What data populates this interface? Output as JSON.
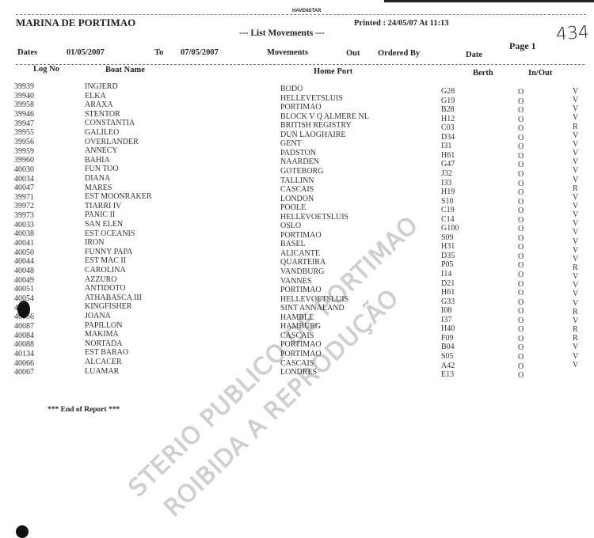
{
  "header": {
    "system": "HAVENSTAR",
    "marina": "MARINA DE PORTIMAO",
    "printed": "Printed : 24/05/07 At 11:13",
    "title": "--- List Movements ---",
    "page": "Page 1",
    "handwritten_number": "434"
  },
  "filters": {
    "dates_label": "Dates",
    "date_from": "01/05/2007",
    "to_label": "To",
    "date_to": "07/05/2007",
    "movements_label": "Movements",
    "movements_value": "Out",
    "ordered_by_label": "Ordered By",
    "ordered_by_value": "Date"
  },
  "columns": [
    "Log No",
    "Boat Name",
    "Home Port",
    "Berth",
    "In/Out"
  ],
  "rows": [
    [
      "39939",
      "INGJERD",
      "BODO",
      "G28",
      "O",
      "V"
    ],
    [
      "39940",
      "ELKA",
      "HELLEVETSLUIS",
      "G19",
      "O",
      "V"
    ],
    [
      "39958",
      "ARAXA",
      "PORTIMAO",
      "B28",
      "O",
      "V"
    ],
    [
      "39946",
      "STENTOR",
      "BLOCK V Q ALMERE NL",
      "H12",
      "O",
      "V"
    ],
    [
      "39947",
      "CONSTANTIA",
      "BRITISH REGISTRY",
      "C03",
      "O",
      "R"
    ],
    [
      "39955",
      "GALILEO",
      "DUN LAOGHAIRE",
      "D34",
      "O",
      "V"
    ],
    [
      "39956",
      "OVERLANDER",
      "GENT",
      "I31",
      "O",
      "V"
    ],
    [
      "39959",
      "ANNECY",
      "PADSTON",
      "H61",
      "O",
      "V"
    ],
    [
      "39960",
      "BAHIA",
      "NAARDEN",
      "G47",
      "O",
      "V"
    ],
    [
      "40030",
      "FUN TOO",
      "GOTEBORG",
      "J32",
      "O",
      "V"
    ],
    [
      "40034",
      "DIANA",
      "TALLINN",
      "I33",
      "O",
      "V"
    ],
    [
      "40047",
      "MARES",
      "CASCAIS",
      "H19",
      "O",
      "R"
    ],
    [
      "39971",
      "EST MOONRAKER",
      "LONDON",
      "S10",
      "O",
      "V"
    ],
    [
      "39972",
      "TIARRI IV",
      "POOLE",
      "C19",
      "O",
      "V"
    ],
    [
      "39973",
      "PANIC II",
      "HELLEVOETSLUIS",
      "C14",
      "O",
      "V"
    ],
    [
      "40033",
      "SAN ELEN",
      "OSLO",
      "G100",
      "O",
      "V"
    ],
    [
      "40038",
      "EST OCEANIS",
      "PORTIMAO",
      "S09",
      "O",
      "V"
    ],
    [
      "40041",
      "IRON",
      "BASEL",
      "H31",
      "O",
      "V"
    ],
    [
      "40050",
      "FUNNY PAPA",
      "ALICANTE",
      "D35",
      "O",
      "V"
    ],
    [
      "40044",
      "EST MAC II",
      "QUARTEIRA",
      "P05",
      "O",
      "V"
    ],
    [
      "40048",
      "CAROLINA",
      "VANDBURG",
      "I14",
      "O",
      "R"
    ],
    [
      "40049",
      "AZZURO",
      "VANNES",
      "D21",
      "O",
      "V"
    ],
    [
      "40051",
      "ANTIDOTO",
      "PORTIMAO",
      "H61",
      "O",
      "V"
    ],
    [
      "40054",
      "ATHABASCA III",
      "HELLEVOETSLUIS",
      "G33",
      "O",
      "V"
    ],
    [
      "4",
      "KINGFISHER",
      "SINT ANNALAND",
      "I08",
      "O",
      "V"
    ],
    [
      "40056",
      "JOANA",
      "HAMBLE",
      "I37",
      "O",
      "R"
    ],
    [
      "40087",
      "PAPILLON",
      "HAMBURG",
      "H40",
      "O",
      "V"
    ],
    [
      "40084",
      "MAKIMA",
      "CASCAIS",
      "F09",
      "O",
      "R"
    ],
    [
      "40088",
      "NORTADA",
      "PORTIMAO",
      "B04",
      "O",
      "R"
    ],
    [
      "40134",
      "EST BARAO",
      "PORTIMAO",
      "S05",
      "O",
      "V"
    ],
    [
      "40066",
      "ALCACER",
      "CASCAIS",
      "A42",
      "O",
      "V"
    ],
    [
      "40067",
      "LUAMAR",
      "LONDRES",
      "E13",
      "O",
      "V"
    ]
  ],
  "footer": "*** End of Report ***",
  "watermark": [
    "STERIO PUBLICO DE PORTIMAO",
    "ROIBIDA A REPRODUÇÃO"
  ]
}
